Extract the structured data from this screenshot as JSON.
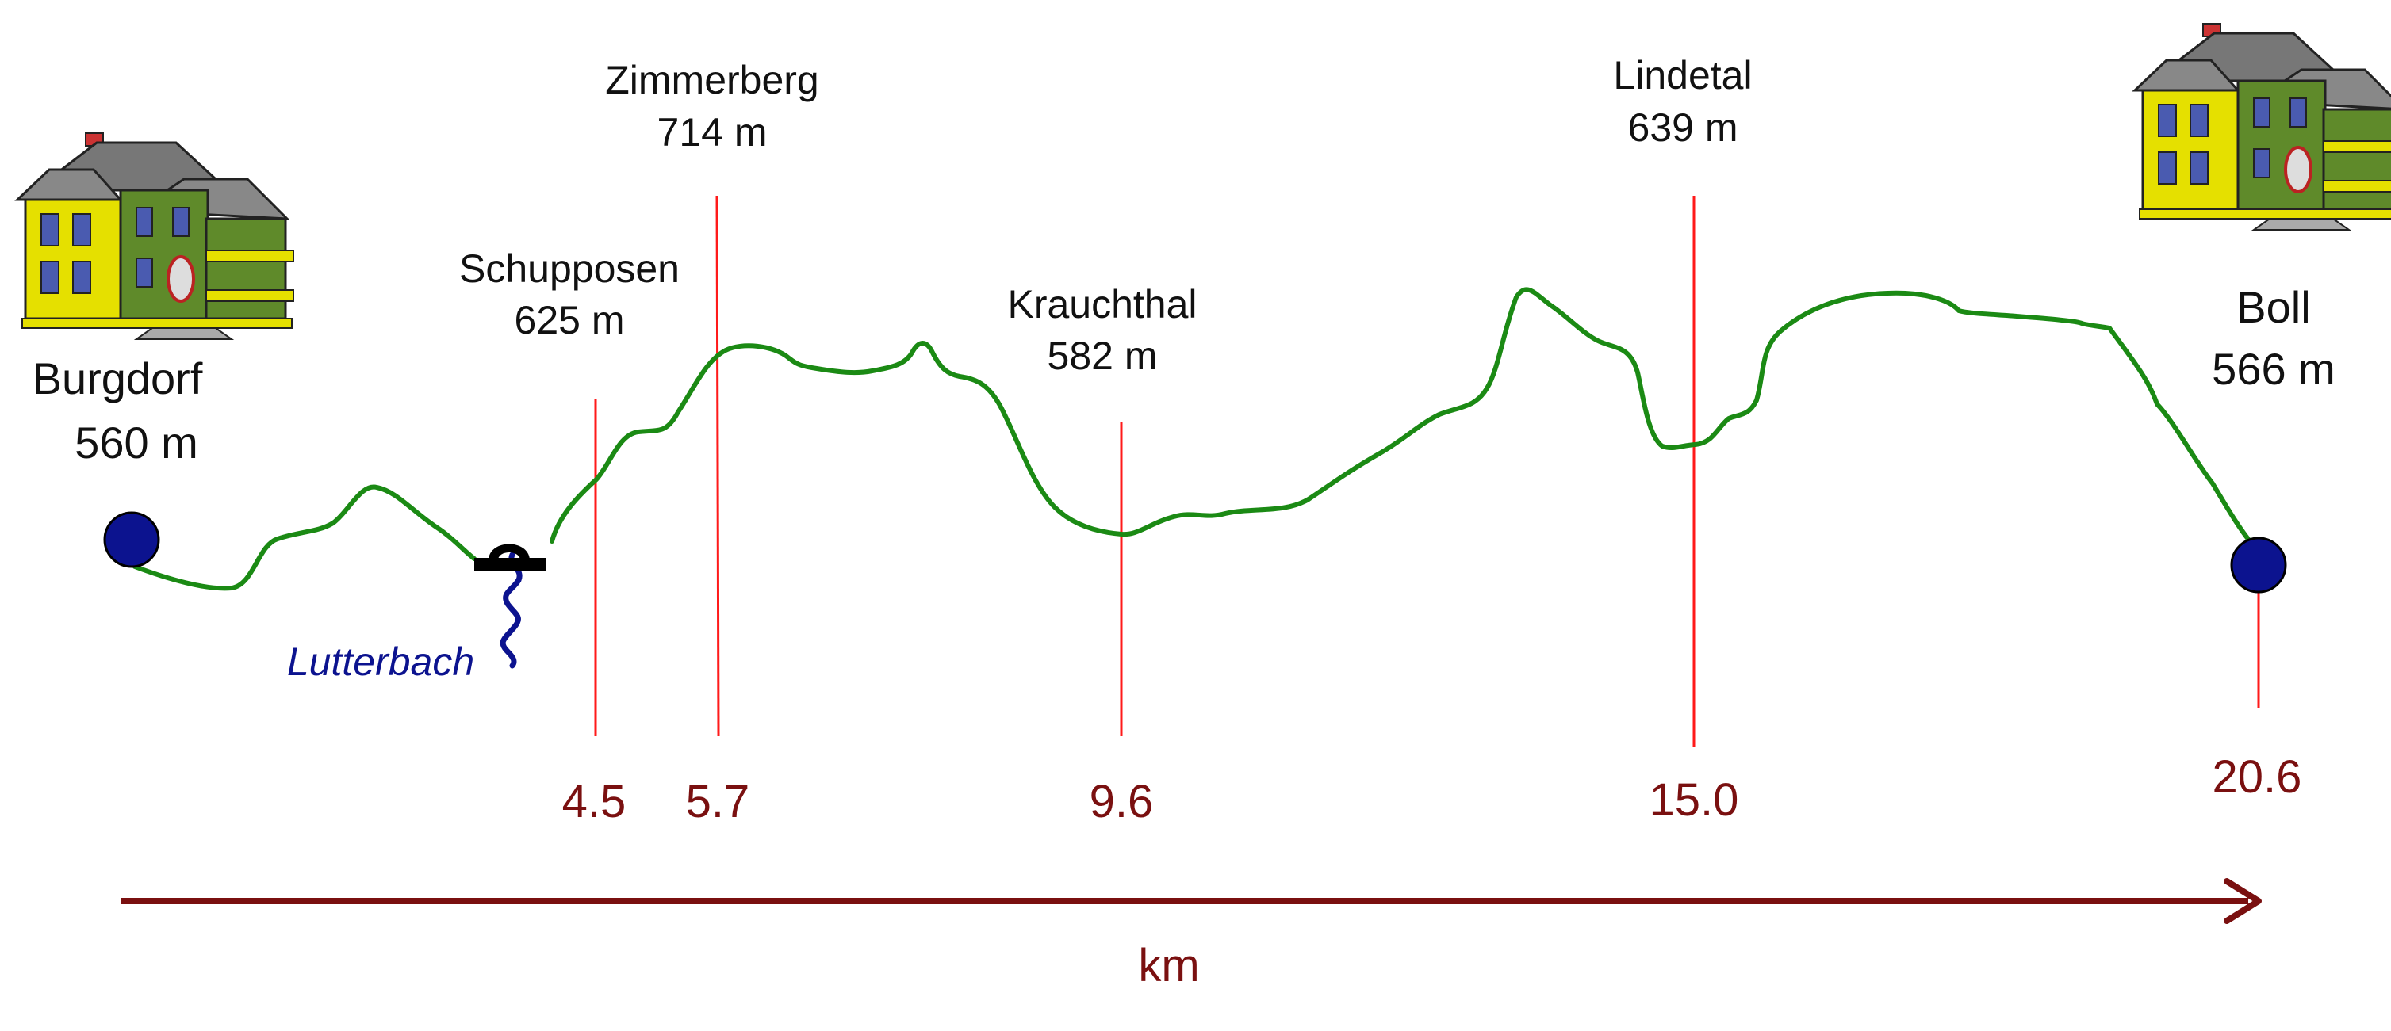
{
  "start": {
    "name": "Burgdorf",
    "elevation": "560 m"
  },
  "end": {
    "name": "Boll",
    "elevation": "566 m"
  },
  "waypoints": [
    {
      "name": "Schupposen",
      "elevation": "625 m",
      "km": "4.5"
    },
    {
      "name": "Zimmerberg",
      "elevation": "714 m",
      "km": "5.7"
    },
    {
      "name": "Krauchthal",
      "elevation": "582 m",
      "km": "9.6"
    },
    {
      "name": "Lindetal",
      "elevation": "639 m",
      "km": "15.0"
    }
  ],
  "end_km": "20.6",
  "creek": "Lutterbach",
  "axis_label": "km",
  "colors": {
    "profile": "#1b8a14",
    "marker_line": "#ff1a1a",
    "km_text": "#7a1010",
    "arrow": "#7a1010",
    "endpoint": "#0c138f",
    "creek": "#0c138f"
  },
  "icons": [
    "house-icon",
    "bridge-icon",
    "creek-icon"
  ]
}
